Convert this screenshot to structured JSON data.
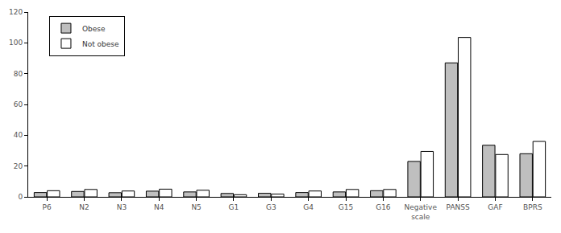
{
  "chart_data": {
    "type": "bar",
    "categories": [
      "P6",
      "N2",
      "N3",
      "N4",
      "N5",
      "G1",
      "G3",
      "G4",
      "G15",
      "G16",
      "Negative scale",
      "PANSS",
      "GAF",
      "BPRS"
    ],
    "series": [
      {
        "name": "Obese",
        "color": "#bfbfbf",
        "values": [
          2.8,
          3.5,
          2.7,
          3.7,
          3.2,
          2.2,
          2.3,
          2.8,
          3.2,
          4.0,
          23,
          87,
          33.5,
          28
        ]
      },
      {
        "name": "Not obese",
        "color": "#ffffff",
        "values": [
          4.0,
          4.8,
          3.8,
          5.0,
          4.3,
          1.4,
          1.8,
          3.8,
          4.8,
          4.8,
          29.5,
          103.5,
          27.5,
          36
        ]
      }
    ],
    "ylim": [
      0,
      120
    ],
    "yticks": [
      0,
      20,
      40,
      60,
      80,
      100,
      120
    ],
    "grid": false,
    "legend": "upper left"
  }
}
